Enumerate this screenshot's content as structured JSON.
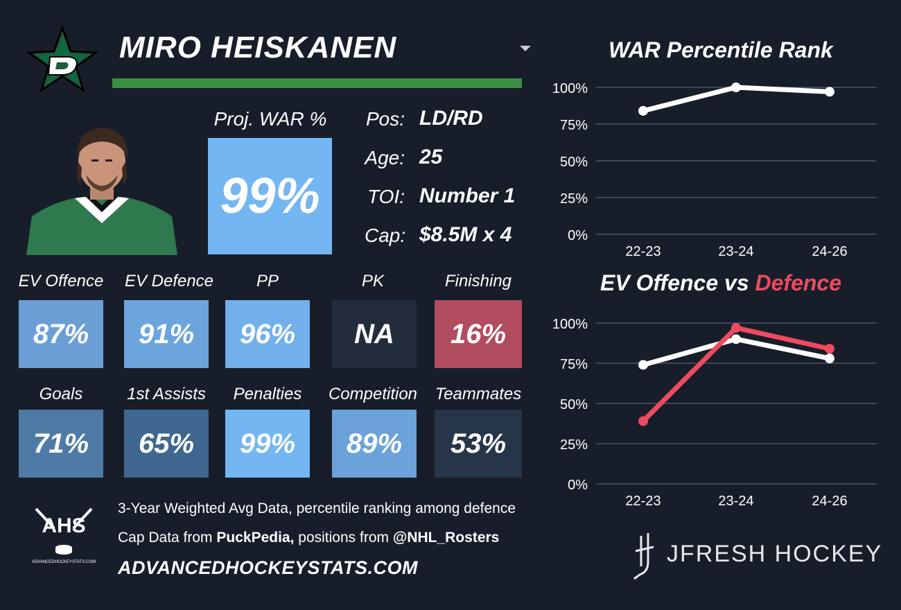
{
  "player": {
    "name": "MIRO HEISKANEN",
    "proj_war_label": "Proj. WAR %",
    "proj_war_value": "99%",
    "proj_war_color": "#74b6f2"
  },
  "info": [
    {
      "label": "Pos:",
      "value": "LD/RD"
    },
    {
      "label": "Age:",
      "value": "25"
    },
    {
      "label": "TOI:",
      "value": "Number 1"
    },
    {
      "label": "Cap:",
      "value": "$8.5M x 4"
    }
  ],
  "stats_row1": [
    {
      "label": "EV Offence",
      "value": "87%",
      "color": "#6b9ed5"
    },
    {
      "label": "EV Defence",
      "value": "91%",
      "color": "#6ba5dc"
    },
    {
      "label": "PP",
      "value": "96%",
      "color": "#72b0eb"
    },
    {
      "label": "PK",
      "value": "NA",
      "color": "#222c3b"
    },
    {
      "label": "Finishing",
      "value": "16%",
      "color": "#b04c5e"
    }
  ],
  "stats_row2": [
    {
      "label": "Goals",
      "value": "71%",
      "color": "#4e7aa6"
    },
    {
      "label": "1st Assists",
      "value": "65%",
      "color": "#3f6790"
    },
    {
      "label": "Penalties",
      "value": "99%",
      "color": "#74b6f2"
    },
    {
      "label": "Competition",
      "value": "89%",
      "color": "#6aa2d9"
    },
    {
      "label": "Teammates",
      "value": "53%",
      "color": "#273548"
    }
  ],
  "footer": {
    "line1": "3-Year Weighted Avg Data, percentile ranking among defence",
    "line2_prefix": "Cap Data from ",
    "line2_source1": "PuckPedia,",
    "line2_middle": " positions from ",
    "line2_source2": "@NHL_Rosters",
    "site": "ADVANCEDHOCKEYSTATS.COM",
    "ahs_logo_text": "AHS",
    "ahs_logo_subtext": "ADVANCEDHOCKEYSTATS.COM",
    "brand": "JFRESH HOCKEY"
  },
  "colors": {
    "background": "#171e2a",
    "green_bar": "#3b8f44",
    "offence_line": "#ffffff",
    "defence_line": "#ee4a5f",
    "gridline": "#4a5568"
  },
  "chart_data": [
    {
      "type": "line",
      "title": "WAR Percentile Rank",
      "categories": [
        "22-23",
        "23-24",
        "24-26"
      ],
      "series": [
        {
          "values": [
            84,
            100,
            97
          ],
          "color": "#ffffff"
        }
      ],
      "ylim": [
        0,
        100
      ],
      "yticks": [
        "0%",
        "25%",
        "50%",
        "75%",
        "100%"
      ],
      "grid": true
    },
    {
      "type": "line",
      "title_part1": "EV Offence vs ",
      "title_part2": "Defence",
      "categories": [
        "22-23",
        "23-24",
        "24-26"
      ],
      "series": [
        {
          "values": [
            74,
            90,
            78
          ],
          "color": "#ffffff"
        },
        {
          "values": [
            39,
            97,
            84
          ],
          "color": "#ee4a5f"
        }
      ],
      "ylim": [
        0,
        100
      ],
      "yticks": [
        "0%",
        "25%",
        "50%",
        "75%",
        "100%"
      ],
      "grid": true
    }
  ]
}
